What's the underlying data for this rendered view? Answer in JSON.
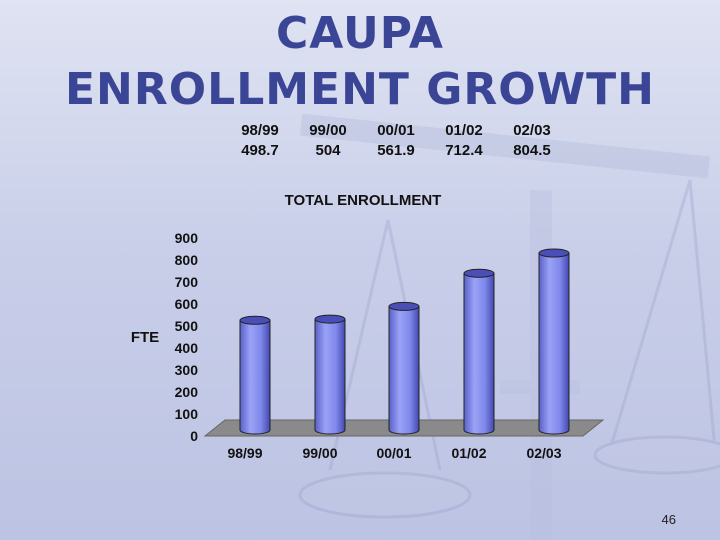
{
  "slide": {
    "title_line1": "CAUPA",
    "title_line2": "ENROLLMENT GROWTH",
    "page_number": "46"
  },
  "summary_table": {
    "years": [
      "98/99",
      "99/00",
      "00/01",
      "01/02",
      "02/03"
    ],
    "values": [
      "498.7",
      "504",
      "561.9",
      "712.4",
      "804.5"
    ]
  },
  "colors": {
    "title": "#3b4596",
    "bar": "#8f97f0",
    "bar_dark": "#4a4fb8",
    "floor": "#8a8a8a"
  },
  "chart_data": {
    "type": "bar",
    "title": "TOTAL ENROLLMENT",
    "ylabel": "FTE",
    "xlabel": "",
    "categories": [
      "98/99",
      "99/00",
      "00/01",
      "01/02",
      "02/03"
    ],
    "values": [
      498.7,
      504,
      561.9,
      712.4,
      804.5
    ],
    "ylim": [
      0,
      900
    ],
    "yticks": [
      0,
      100,
      200,
      300,
      400,
      500,
      600,
      700,
      800,
      900
    ],
    "grid": false,
    "style": "3d-cylinder"
  }
}
